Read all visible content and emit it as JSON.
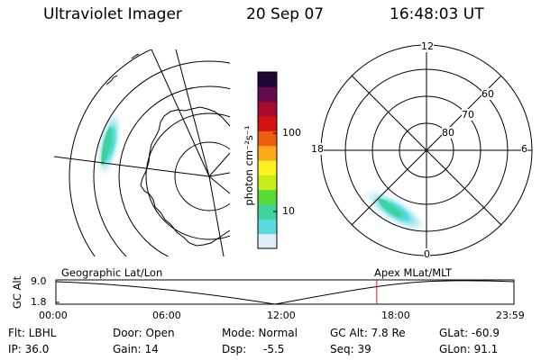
{
  "header": {
    "instrument": "Ultraviolet Imager",
    "date": "20 Sep 07",
    "time": "16:48:03 UT"
  },
  "colorbar": {
    "unit_label": "photon cm⁻²s⁻¹",
    "ticks": [
      "100",
      "10"
    ],
    "scale": "log",
    "colors": [
      "#dfeff8",
      "#5ad9e0",
      "#3fd39c",
      "#57dc35",
      "#c4ed19",
      "#fdf11f",
      "#fda818",
      "#ee5d10",
      "#d61111",
      "#a70b2b",
      "#650a4e",
      "#1f0833"
    ]
  },
  "left_map": {
    "projection": "Geographic Lat/Lon",
    "grid": "on"
  },
  "right_map": {
    "projection": "Apex MLat/MLT",
    "mlt_labels": {
      "top": "12",
      "left": "18",
      "right": "6",
      "bottom": "0"
    },
    "lat_labels": [
      "60",
      "70",
      "80"
    ]
  },
  "altitude_plot": {
    "ylabel": "GC Alt",
    "yticks": [
      "9.0",
      "1.8"
    ],
    "xticks": [
      "00:00",
      "06:00",
      "12:00",
      "18:00",
      "23:59"
    ],
    "left_title": "Geographic Lat/Lon",
    "right_title": "Apex MLat/MLT",
    "current_time_marker": "16:48",
    "marker_color": "#d32020"
  },
  "info": {
    "filter": "Flt: LBHL",
    "door": "Door: Open",
    "mode": "Mode: Normal",
    "gc_alt": "GC Alt: 7.8 Re",
    "glat": "GLat: -60.9",
    "ip": "IP: 36.0",
    "gain": "Gain: 14",
    "dsp": "Dsp:",
    "dsp_value": "-5.5",
    "seq": "Seq: 39",
    "glon": "GLon:  91.1"
  }
}
